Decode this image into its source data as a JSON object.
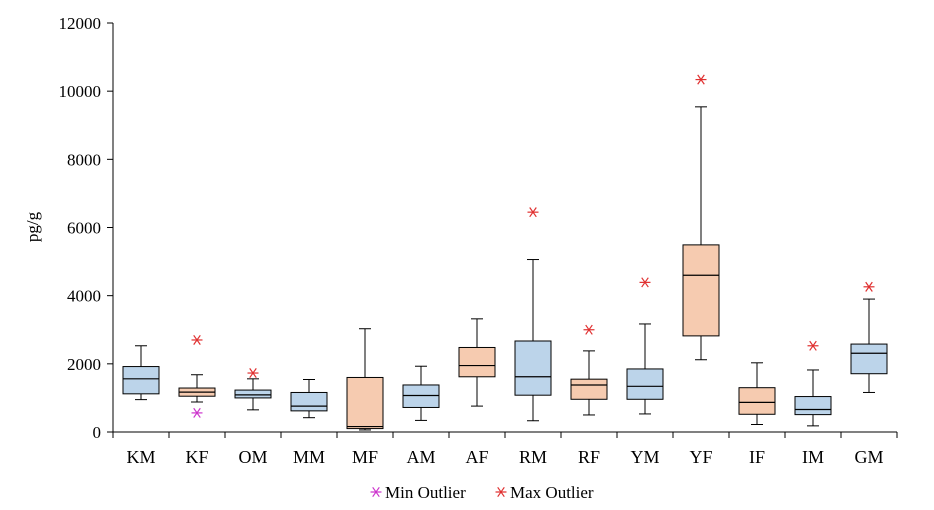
{
  "chart_data": {
    "type": "boxplot",
    "ylabel": "pg/g",
    "xlabel": "",
    "ylim": [
      0,
      12000
    ],
    "yticks": [
      0,
      2000,
      4000,
      6000,
      8000,
      10000,
      12000
    ],
    "grid": false,
    "legend": {
      "placement": "bottom-center",
      "entries": [
        {
          "label": "Min Outlier",
          "color": "#cc33cc",
          "marker": "asterisk"
        },
        {
          "label": "Max Outlier",
          "color": "#e03030",
          "marker": "asterisk"
        }
      ]
    },
    "colors": {
      "male_fill": "#bcd4ea",
      "female_fill": "#f6cbb0",
      "box_stroke": "#000000"
    },
    "categories": [
      "KM",
      "KF",
      "OM",
      "MM",
      "MF",
      "AM",
      "AF",
      "RM",
      "RF",
      "YM",
      "YF",
      "IF",
      "IM",
      "GM"
    ],
    "boxes": [
      {
        "label": "KM",
        "sex": "male",
        "min": 950,
        "q1": 1120,
        "median": 1560,
        "q3": 1920,
        "max": 2530,
        "min_outlier": null,
        "max_outlier": null
      },
      {
        "label": "KF",
        "sex": "female",
        "min": 880,
        "q1": 1050,
        "median": 1170,
        "q3": 1290,
        "max": 1680,
        "min_outlier": 560,
        "max_outlier": 2700
      },
      {
        "label": "OM",
        "sex": "male",
        "min": 650,
        "q1": 1000,
        "median": 1090,
        "q3": 1230,
        "max": 1560,
        "min_outlier": null,
        "max_outlier": 1730
      },
      {
        "label": "MM",
        "sex": "male",
        "min": 420,
        "q1": 620,
        "median": 760,
        "q3": 1160,
        "max": 1540,
        "min_outlier": null,
        "max_outlier": null
      },
      {
        "label": "MF",
        "sex": "female",
        "min": 60,
        "q1": 100,
        "median": 160,
        "q3": 1600,
        "max": 3030,
        "min_outlier": null,
        "max_outlier": null
      },
      {
        "label": "AM",
        "sex": "male",
        "min": 340,
        "q1": 720,
        "median": 1070,
        "q3": 1380,
        "max": 1930,
        "min_outlier": null,
        "max_outlier": null
      },
      {
        "label": "AF",
        "sex": "female",
        "min": 760,
        "q1": 1620,
        "median": 1950,
        "q3": 2480,
        "max": 3320,
        "min_outlier": null,
        "max_outlier": null
      },
      {
        "label": "RM",
        "sex": "male",
        "min": 330,
        "q1": 1080,
        "median": 1620,
        "q3": 2670,
        "max": 5060,
        "min_outlier": null,
        "max_outlier": 6450
      },
      {
        "label": "RF",
        "sex": "female",
        "min": 500,
        "q1": 960,
        "median": 1380,
        "q3": 1550,
        "max": 2380,
        "min_outlier": null,
        "max_outlier": 3000
      },
      {
        "label": "YM",
        "sex": "male",
        "min": 530,
        "q1": 960,
        "median": 1340,
        "q3": 1850,
        "max": 3170,
        "min_outlier": null,
        "max_outlier": 4390
      },
      {
        "label": "YF",
        "sex": "female",
        "min": 2120,
        "q1": 2820,
        "median": 4600,
        "q3": 5490,
        "max": 9540,
        "min_outlier": null,
        "max_outlier": 10340
      },
      {
        "label": "IF",
        "sex": "female",
        "min": 220,
        "q1": 520,
        "median": 870,
        "q3": 1300,
        "max": 2030,
        "min_outlier": null,
        "max_outlier": null
      },
      {
        "label": "IM",
        "sex": "male",
        "min": 180,
        "q1": 510,
        "median": 660,
        "q3": 1040,
        "max": 1820,
        "min_outlier": null,
        "max_outlier": 2530
      },
      {
        "label": "GM",
        "sex": "male",
        "min": 1160,
        "q1": 1710,
        "median": 2310,
        "q3": 2580,
        "max": 3900,
        "min_outlier": null,
        "max_outlier": 4260
      }
    ]
  }
}
